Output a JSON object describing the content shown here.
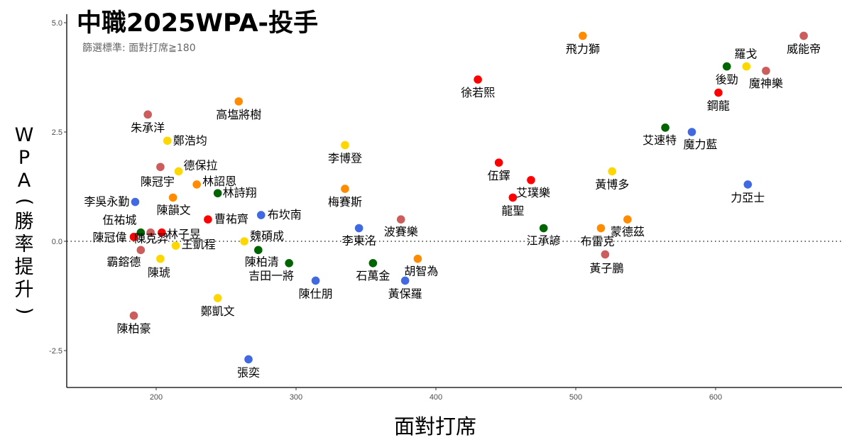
{
  "chart_data": {
    "type": "scatter",
    "title": "中職2025WPA-投手",
    "subtitle": "篩選標準: 面對打席≧180",
    "xlabel": "面對打席",
    "ylabel_chars": [
      "W",
      "P",
      "A",
      "(",
      "勝",
      "率",
      "提",
      "升",
      ")"
    ],
    "ylabel": "WPA(勝率提升)",
    "xlim": [
      137,
      690
    ],
    "ylim": [
      -3.4,
      5.2
    ],
    "x_ticks": [
      200,
      300,
      400,
      500,
      600
    ],
    "x_tick_labels": [
      "200",
      "300",
      "400",
      "500",
      "600"
    ],
    "y_ticks": [
      -2.5,
      0,
      2.5,
      5
    ],
    "y_tick_labels": [
      "-2.5",
      "0.0",
      "2.5",
      "5.0"
    ],
    "reference_line": {
      "y": 0,
      "style": "dotted"
    },
    "grid": false,
    "team_colors": {
      "red": "#ff0000",
      "green": "#006400",
      "pink": "#cd5c5c",
      "yellow": "#ffd700",
      "orange": "#ff8c00",
      "blue": "#4169e1"
    },
    "points": [
      {
        "name": "威能帝",
        "x": 663,
        "y": 4.7,
        "team": "pink"
      },
      {
        "name": "飛力獅",
        "x": 505,
        "y": 4.7,
        "team": "orange"
      },
      {
        "name": "羅戈",
        "x": 622,
        "y": 4.0,
        "team": "yellow"
      },
      {
        "name": "後勁",
        "x": 608,
        "y": 4.0,
        "team": "green"
      },
      {
        "name": "魔神樂",
        "x": 636,
        "y": 3.9,
        "team": "pink"
      },
      {
        "name": "鋼龍",
        "x": 602,
        "y": 3.4,
        "team": "red"
      },
      {
        "name": "徐若熙",
        "x": 430,
        "y": 3.7,
        "team": "red"
      },
      {
        "name": "艾速特",
        "x": 564,
        "y": 2.6,
        "team": "green"
      },
      {
        "name": "魔力藍",
        "x": 583,
        "y": 2.5,
        "team": "blue"
      },
      {
        "name": "力亞士",
        "x": 623,
        "y": 1.3,
        "team": "blue"
      },
      {
        "name": "黃博多",
        "x": 526,
        "y": 1.6,
        "team": "yellow"
      },
      {
        "name": "蒙德茲",
        "x": 537,
        "y": 0.5,
        "team": "orange"
      },
      {
        "name": "布雷克",
        "x": 518,
        "y": 0.3,
        "team": "orange"
      },
      {
        "name": "黃子鵬",
        "x": 521,
        "y": -0.3,
        "team": "pink"
      },
      {
        "name": "江承諺",
        "x": 477,
        "y": 0.3,
        "team": "green"
      },
      {
        "name": "伍鐸",
        "x": 445,
        "y": 1.8,
        "team": "red"
      },
      {
        "name": "艾璞樂",
        "x": 468,
        "y": 1.4,
        "team": "red"
      },
      {
        "name": "龍聖",
        "x": 455,
        "y": 1.0,
        "team": "red"
      },
      {
        "name": "高塩將樹",
        "x": 259,
        "y": 3.2,
        "team": "orange"
      },
      {
        "name": "朱承洋",
        "x": 194,
        "y": 2.9,
        "team": "pink"
      },
      {
        "name": "鄭浩均",
        "x": 208,
        "y": 2.3,
        "team": "yellow"
      },
      {
        "name": "陳冠宇",
        "x": 203,
        "y": 1.7,
        "team": "pink"
      },
      {
        "name": "德保拉",
        "x": 216,
        "y": 1.6,
        "team": "yellow"
      },
      {
        "name": "林詔恩",
        "x": 229,
        "y": 1.3,
        "team": "orange"
      },
      {
        "name": "林詩翔",
        "x": 244,
        "y": 1.1,
        "team": "green"
      },
      {
        "name": "李吳永勤",
        "x": 185,
        "y": 0.9,
        "team": "blue"
      },
      {
        "name": "陳韻文",
        "x": 212,
        "y": 1.0,
        "team": "orange"
      },
      {
        "name": "曹祐齊",
        "x": 237,
        "y": 0.5,
        "team": "red"
      },
      {
        "name": "布坎南",
        "x": 275,
        "y": 0.6,
        "team": "blue"
      },
      {
        "name": "李博登",
        "x": 335,
        "y": 2.2,
        "team": "yellow"
      },
      {
        "name": "梅賽斯",
        "x": 335,
        "y": 1.2,
        "team": "orange"
      },
      {
        "name": "李東洺",
        "x": 345,
        "y": 0.3,
        "team": "blue"
      },
      {
        "name": "波賽樂",
        "x": 375,
        "y": 0.5,
        "team": "pink"
      },
      {
        "name": "魏碩成",
        "x": 263,
        "y": 0.0,
        "team": "yellow"
      },
      {
        "name": "陳柏清",
        "x": 273,
        "y": -0.2,
        "team": "green"
      },
      {
        "name": "吉田一將",
        "x": 295,
        "y": -0.5,
        "team": "green"
      },
      {
        "name": "陳仕朋",
        "x": 314,
        "y": -0.9,
        "team": "blue"
      },
      {
        "name": "石萬金",
        "x": 355,
        "y": -0.5,
        "team": "green"
      },
      {
        "name": "胡智為",
        "x": 387,
        "y": -0.4,
        "team": "orange"
      },
      {
        "name": "黃保羅",
        "x": 378,
        "y": -0.9,
        "team": "blue"
      },
      {
        "name": "鄭凱文",
        "x": 244,
        "y": -1.3,
        "team": "yellow"
      },
      {
        "name": "陳柏豪",
        "x": 184,
        "y": -1.7,
        "team": "pink"
      },
      {
        "name": "張奕",
        "x": 266,
        "y": -2.7,
        "team": "blue"
      },
      {
        "name": "伍祐城",
        "x": 189,
        "y": 0.2,
        "team": "green"
      },
      {
        "name": "陳冠偉",
        "x": 184,
        "y": 0.1,
        "team": "red"
      },
      {
        "name": "陳克羿",
        "x": 196,
        "y": 0.2,
        "team": "pink"
      },
      {
        "name": "林子昱",
        "x": 204,
        "y": 0.2,
        "team": "red"
      },
      {
        "name": "霸鎔德",
        "x": 189,
        "y": -0.2,
        "team": "pink"
      },
      {
        "name": "王凱程",
        "x": 214,
        "y": -0.1,
        "team": "yellow"
      },
      {
        "name": "陳琥",
        "x": 203,
        "y": -0.4,
        "team": "yellow"
      }
    ]
  }
}
